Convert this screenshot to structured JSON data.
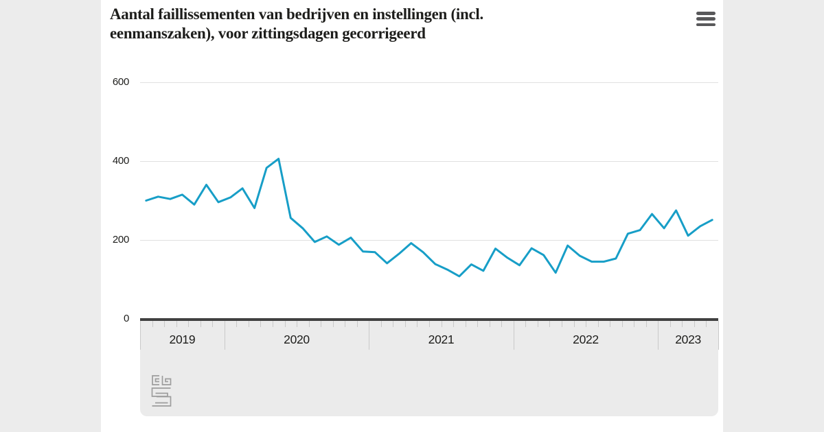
{
  "header": {
    "title_lines": [
      "Aantal faillissementen van bedrijven en instellingen (incl.",
      "eenmanszaken), voor zittingsdagen gecorrigeerd"
    ],
    "menu_icon": "hamburger-icon"
  },
  "footer": {
    "logo": "cbs-logo"
  },
  "colors": {
    "page_background": "#ececec",
    "card_background": "#ffffff",
    "band_background": "#ebebeb",
    "axis_line": "#404040",
    "gridline": "#e0e0e0",
    "tick": "#c9c9c9",
    "text": "#1d1d1b",
    "series_line": "#179ec7",
    "menu_icon": "#58585a",
    "logo": "#9d9d9d"
  },
  "chart_data": {
    "type": "line",
    "title": "Aantal faillissementen van bedrijven en instellingen (incl. eenmanszaken), voor zittingsdagen gecorrigeerd",
    "xlabel": "",
    "ylabel": "",
    "ylim": [
      0,
      620
    ],
    "grid": true,
    "legend": false,
    "y_ticks": [
      600,
      400,
      200,
      0
    ],
    "x_years": [
      {
        "label": "2019",
        "months": 7
      },
      {
        "label": "2020",
        "months": 12
      },
      {
        "label": "2021",
        "months": 12
      },
      {
        "label": "2022",
        "months": 12
      },
      {
        "label": "2023",
        "months": 5
      }
    ],
    "frequency": "monthly",
    "series": [
      {
        "name": "Faillissementen",
        "color": "#179ec7",
        "values": [
          300,
          310,
          304,
          315,
          290,
          340,
          296,
          308,
          331,
          281,
          383,
          406,
          256,
          230,
          195,
          209,
          188,
          206,
          171,
          169,
          141,
          165,
          192,
          169,
          139,
          125,
          108,
          138,
          122,
          178,
          155,
          136,
          179,
          162,
          117,
          186,
          160,
          145,
          145,
          153,
          216,
          225,
          266,
          230,
          275,
          211,
          235,
          251
        ]
      }
    ]
  }
}
